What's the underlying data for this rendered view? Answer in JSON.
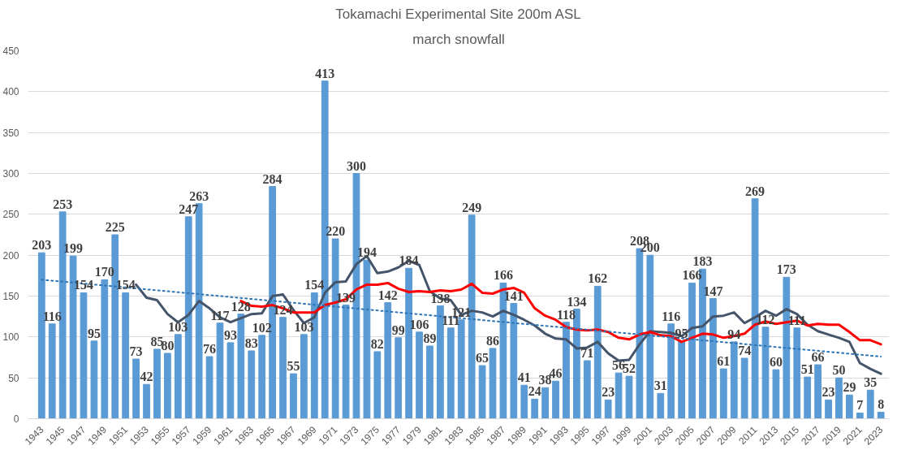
{
  "chart_data": {
    "type": "bar",
    "title": "Tokamachi Experimental Site 200m ASL",
    "subtitle": "march snowfall",
    "x": [
      1943,
      1944,
      1945,
      1946,
      1947,
      1948,
      1949,
      1950,
      1951,
      1952,
      1953,
      1954,
      1955,
      1956,
      1957,
      1958,
      1959,
      1960,
      1961,
      1962,
      1963,
      1964,
      1965,
      1966,
      1967,
      1968,
      1969,
      1970,
      1971,
      1972,
      1973,
      1974,
      1975,
      1976,
      1977,
      1978,
      1979,
      1980,
      1981,
      1982,
      1983,
      1984,
      1985,
      1986,
      1987,
      1988,
      1989,
      1990,
      1991,
      1992,
      1993,
      1994,
      1995,
      1996,
      1997,
      1998,
      1999,
      2000,
      2001,
      2002,
      2003,
      2004,
      2005,
      2006,
      2007,
      2008,
      2009,
      2010,
      2011,
      2012,
      2013,
      2014,
      2015,
      2016,
      2017,
      2018,
      2019,
      2020,
      2021,
      2022,
      2023
    ],
    "series": [
      {
        "color": "#5b9bd5",
        "data_labels": true,
        "values": [
          203,
          116,
          253,
          199,
          154,
          95,
          170,
          225,
          154,
          73,
          42,
          85,
          80,
          103,
          247,
          263,
          76,
          117,
          93,
          128,
          83,
          102,
          284,
          124,
          55,
          103,
          154,
          413,
          220,
          139,
          300,
          194,
          82,
          142,
          99,
          184,
          106,
          89,
          138,
          111,
          121,
          249,
          65,
          86,
          166,
          141,
          41,
          24,
          38,
          46,
          118,
          134,
          71,
          162,
          23,
          56,
          52,
          208,
          200,
          31,
          116,
          95,
          166,
          183,
          147,
          61,
          94,
          74,
          269,
          112,
          60,
          173,
          111,
          51,
          66,
          23,
          50,
          29,
          7,
          35,
          8
        ]
      },
      {
        "type": "line",
        "color": "#44546a",
        "line_style": "solid",
        "x": [
          1952,
          1953,
          1954,
          1955,
          1956,
          1957,
          1958,
          1959,
          1960,
          1961,
          1962,
          1963,
          1964,
          1965,
          1966,
          1967,
          1968,
          1969,
          1970,
          1971,
          1972,
          1973,
          1974,
          1975,
          1976,
          1977,
          1978,
          1979,
          1980,
          1981,
          1982,
          1983,
          1984,
          1985,
          1986,
          1987,
          1988,
          1989,
          1990,
          1991,
          1992,
          1993,
          1994,
          1995,
          1996,
          1997,
          1998,
          1999,
          2000,
          2001,
          2002,
          2003,
          2004,
          2005,
          2006,
          2007,
          2008,
          2009,
          2010,
          2011,
          2012,
          2013,
          2014,
          2015,
          2016,
          2017,
          2018,
          2019,
          2020,
          2021,
          2022,
          2023
        ],
        "values": [
          164,
          148,
          145,
          128,
          118,
          127,
          144,
          135,
          124,
          118,
          123,
          128,
          129,
          150,
          152,
          133,
          117,
          124,
          154,
          167,
          168,
          189,
          199,
          178,
          180,
          185,
          193,
          188,
          156,
          147,
          145,
          127,
          132,
          130,
          125,
          132,
          127,
          121,
          114,
          104,
          98,
          97,
          86,
          87,
          94,
          80,
          71,
          72,
          91,
          107,
          106,
          105,
          101,
          111,
          113,
          125,
          126,
          130,
          117,
          124,
          132,
          126,
          134,
          128,
          115,
          107,
          103,
          99,
          94,
          68,
          61,
          55
        ]
      },
      {
        "type": "line",
        "color": "#ff0000",
        "line_style": "solid",
        "x": [
          1962,
          1963,
          1964,
          1965,
          1966,
          1967,
          1968,
          1969,
          1970,
          1971,
          1972,
          1973,
          1974,
          1975,
          1976,
          1977,
          1978,
          1979,
          1980,
          1981,
          1982,
          1983,
          1984,
          1985,
          1986,
          1987,
          1988,
          1989,
          1990,
          1991,
          1992,
          1993,
          1994,
          1995,
          1996,
          1997,
          1998,
          1999,
          2000,
          2001,
          2002,
          2003,
          2004,
          2005,
          2006,
          2007,
          2008,
          2009,
          2010,
          2011,
          2012,
          2013,
          2014,
          2015,
          2016,
          2017,
          2018,
          2019,
          2020,
          2021,
          2022,
          2023
        ],
        "values": [
          144,
          138,
          137,
          139,
          135,
          130,
          130,
          130,
          139,
          142,
          146,
          158,
          164,
          164,
          166,
          159,
          155,
          156,
          155,
          157,
          156,
          158,
          165,
          154,
          153,
          158,
          160,
          154,
          135,
          126,
          121,
          112,
          109,
          108,
          109,
          106,
          99,
          97,
          103,
          106,
          102,
          101,
          94,
          99,
          104,
          103,
          99,
          101,
          104,
          115,
          119,
          116,
          118,
          120,
          114,
          116,
          115,
          115,
          106,
          96,
          96,
          91
        ]
      },
      {
        "type": "line",
        "color": "#2e75b6",
        "line_style": "dotted",
        "x": [
          1943,
          2023
        ],
        "values": [
          170,
          76
        ]
      }
    ],
    "xlim": [
      1941.7,
      2023.8
    ],
    "xticks": [
      1943,
      1945,
      1947,
      1949,
      1951,
      1953,
      1955,
      1957,
      1959,
      1961,
      1963,
      1965,
      1967,
      1969,
      1971,
      1973,
      1975,
      1977,
      1979,
      1981,
      1983,
      1985,
      1987,
      1989,
      1991,
      1993,
      1995,
      1997,
      1999,
      2001,
      2003,
      2005,
      2007,
      2009,
      2011,
      2013,
      2015,
      2017,
      2019,
      2021,
      2023
    ],
    "ylim": [
      0,
      450
    ],
    "yticks": [
      0,
      50,
      100,
      150,
      200,
      250,
      300,
      350,
      400,
      450
    ],
    "grid": "y"
  }
}
